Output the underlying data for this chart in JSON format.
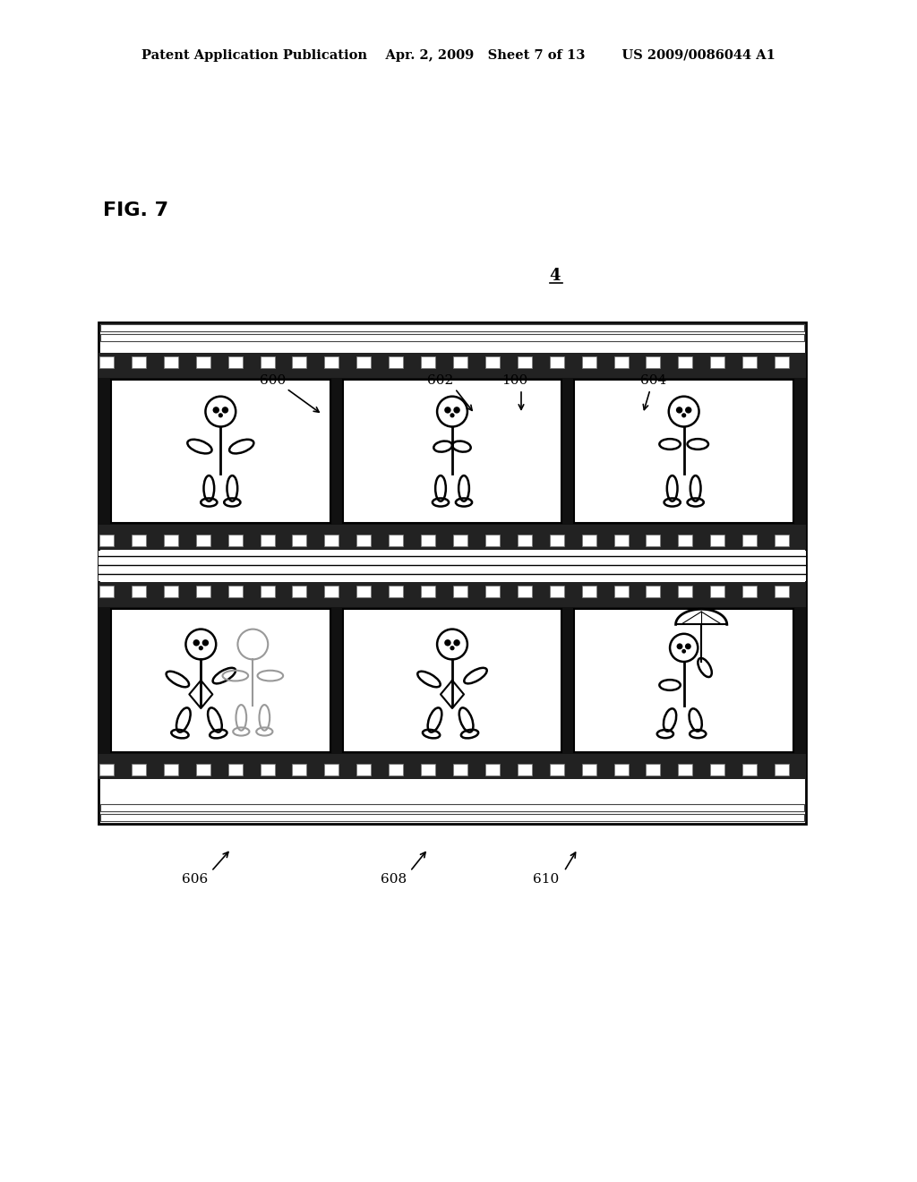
{
  "title_line": "Patent Application Publication    Apr. 2, 2009   Sheet 7 of 13        US 2009/0086044 A1",
  "fig_label": "FIG. 7",
  "ref_num_4": "4",
  "ref_labels": [
    "600",
    "602",
    "100",
    "604",
    "606",
    "608",
    "610"
  ],
  "bg_color": "#ffffff",
  "black": "#000000",
  "dark_gray": "#222222",
  "light_gray": "#cccccc",
  "film_dark": "#1a1a1a",
  "film_strip_color": "#111111"
}
